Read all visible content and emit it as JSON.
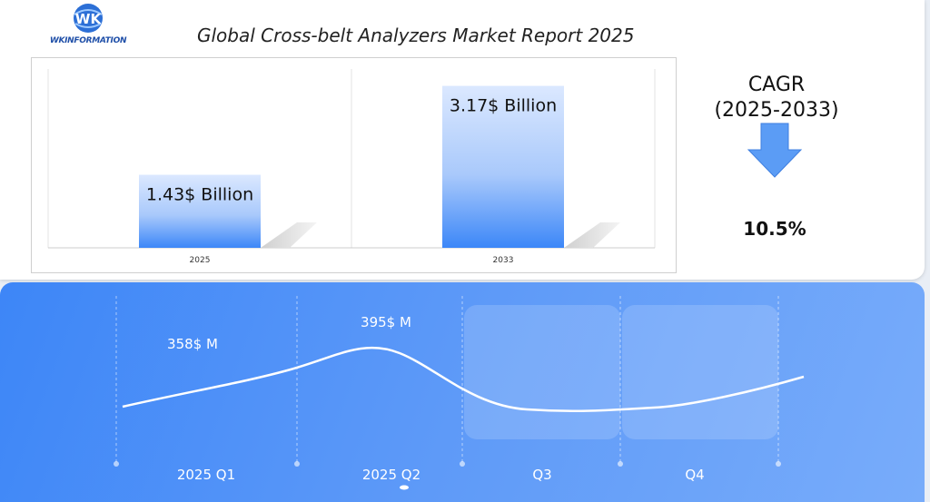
{
  "header": {
    "logo_text": "WKINFORMATION",
    "title": "Global Cross-belt Analyzers Market Report 2025"
  },
  "cagr": {
    "label_line1": "CAGR",
    "label_line2": "(2025-2033)",
    "value": "10.5%"
  },
  "chart_data": [
    {
      "type": "bar",
      "title": "",
      "categories": [
        "2025",
        "2033"
      ],
      "values": [
        1.43,
        3.17
      ],
      "data_labels": [
        "1.43$ Billion",
        "3.17$ Billion"
      ],
      "ylim": [
        0,
        3.5
      ],
      "grid": false,
      "colors": {
        "bar_top": "#dbe8ff",
        "bar_bottom": "#3c87f8"
      }
    },
    {
      "type": "line",
      "title": "",
      "categories": [
        "2025 Q1",
        "2025 Q2",
        "Q3",
        "Q4"
      ],
      "values": [
        358,
        395,
        null,
        null
      ],
      "data_labels": [
        "358$ M",
        "395$ M",
        "",
        ""
      ],
      "grid": false,
      "colors": {
        "line": "#ffffff"
      }
    }
  ]
}
